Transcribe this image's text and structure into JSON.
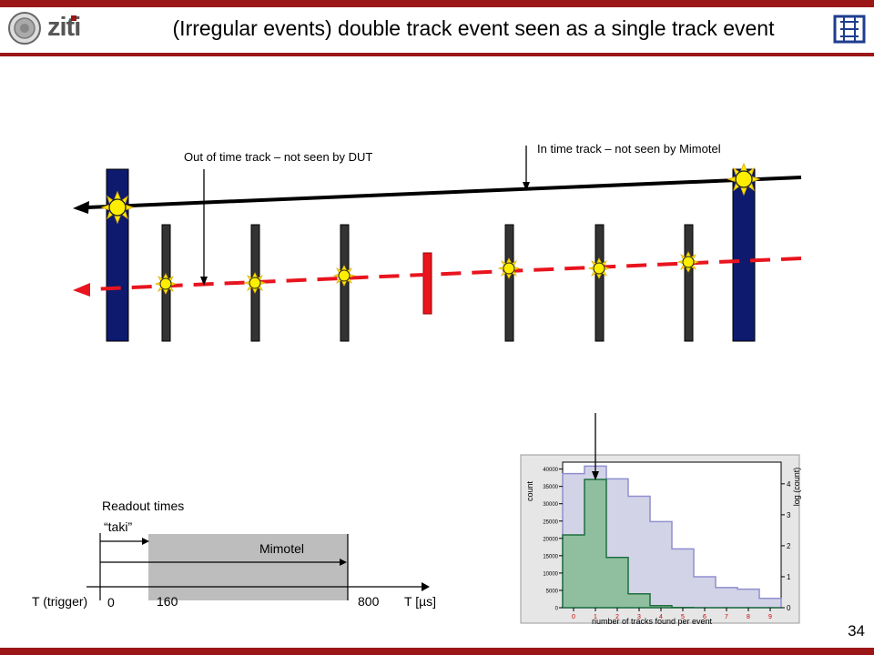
{
  "header": {
    "title": "(Irregular events)  double track event seen as a single track event",
    "logo_text": "ziti",
    "logo_accent_color": "#9b1616"
  },
  "page_number": "34",
  "track_diagram": {
    "in_time_label": "In time track – not seen by Mimotel",
    "out_of_time_label": "Out of time track – not seen by DUT",
    "colors": {
      "telescope_plane": "#0d1a6e",
      "mimotel_plane": "#333333",
      "dut": "#e8141e",
      "in_time_track": "#000000",
      "out_of_time_track": "#e8141e",
      "hit": "#ffee00"
    }
  },
  "timing": {
    "section_title": "Readout times",
    "taki_label": "“taki”",
    "mimotel_label": "Mimotel",
    "trigger_label": "T (trigger)",
    "t0_label": "0",
    "t160_label": "160",
    "t800_label": "800",
    "axis_label": "T [µs]"
  },
  "histogram": {
    "title": "",
    "xlabel": "number of tracks found per event",
    "ylabel_left": "count",
    "ylabel_right": "log (count)",
    "xticks": [
      "0",
      "1",
      "2",
      "3",
      "4",
      "5",
      "6",
      "7",
      "8",
      "9"
    ],
    "yticks_left": [
      "0",
      "5000",
      "10000",
      "15000",
      "20000",
      "25000",
      "30000",
      "35000",
      "40000"
    ],
    "yticks_right": [
      "0",
      "1",
      "2",
      "3",
      "4"
    ],
    "colors": {
      "linear": "#2e8b57",
      "log": "#8f8fcf"
    }
  },
  "chart_data": {
    "type": "bar",
    "xlabel": "number of tracks found per event",
    "ylabel": "count",
    "categories": [
      "0",
      "1",
      "2",
      "3",
      "4",
      "5",
      "6",
      "7",
      "8",
      "9"
    ],
    "ylim": [
      0,
      42000
    ],
    "y2lim": [
      0,
      4.7
    ],
    "series": [
      {
        "name": "count",
        "axis": "left",
        "values": [
          21000,
          37000,
          14500,
          4000,
          600,
          80,
          10,
          0,
          0,
          0
        ]
      },
      {
        "name": "log (count)",
        "axis": "right",
        "values": [
          4.33,
          4.57,
          4.16,
          3.6,
          2.78,
          1.9,
          1.0,
          0.65,
          0.6,
          0.3
        ]
      }
    ],
    "grid": false
  }
}
